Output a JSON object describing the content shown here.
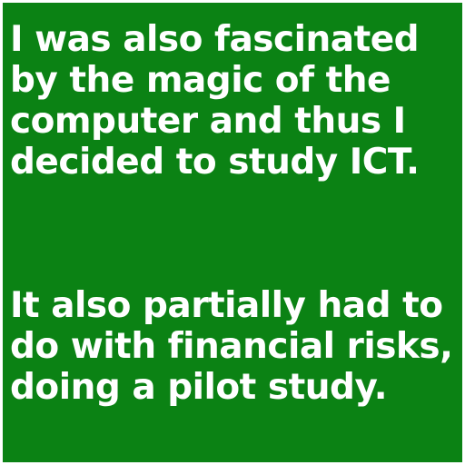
{
  "colors": {
    "background": "#0b8214",
    "text": "#ffffff",
    "border": "#ffffff"
  },
  "paragraphs": [
    {
      "lines": [
        "I was also fascinated",
        "by the magic of the",
        "computer and thus I",
        "decided to study ICT."
      ]
    },
    {
      "lines": [
        "It also partially had to",
        "do with financial risks,",
        "doing a pilot study."
      ]
    }
  ]
}
